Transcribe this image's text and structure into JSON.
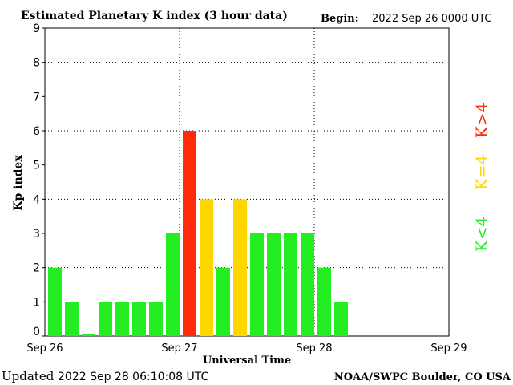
{
  "header": {
    "title": "Estimated Planetary K index (3 hour data)",
    "begin_label": "Begin:",
    "begin_value": "2022 Sep 26 0000 UTC"
  },
  "footer": {
    "updated_label": "Updated",
    "updated_value": "2022 Sep 28 06:10:08 UTC",
    "source": "NOAA/SWPC Boulder, CO USA"
  },
  "legend": {
    "high": "K>4",
    "equal": "K=4",
    "low": "K<4"
  },
  "colors": {
    "low": "#22ee22",
    "equal": "#ffd700",
    "high": "#ff2a0a",
    "frame": "#000000",
    "grid": "#000000"
  },
  "chart_data": {
    "type": "bar",
    "title": "Estimated Planetary K index (3 hour data)",
    "xlabel": "Universal Time",
    "ylabel": "Kp index",
    "ylim": [
      0,
      9
    ],
    "yticks": [
      "0",
      "1",
      "2",
      "3",
      "4",
      "5",
      "6",
      "7",
      "8",
      "9"
    ],
    "xticks": [
      "Sep 26",
      "Sep 27",
      "Sep 28",
      "Sep 29"
    ],
    "grid": true,
    "interval_hours": 3,
    "values": [
      2,
      1,
      0.05,
      1,
      1,
      1,
      1,
      3,
      6,
      4,
      2,
      4,
      3,
      3,
      3,
      3,
      2,
      1
    ]
  }
}
